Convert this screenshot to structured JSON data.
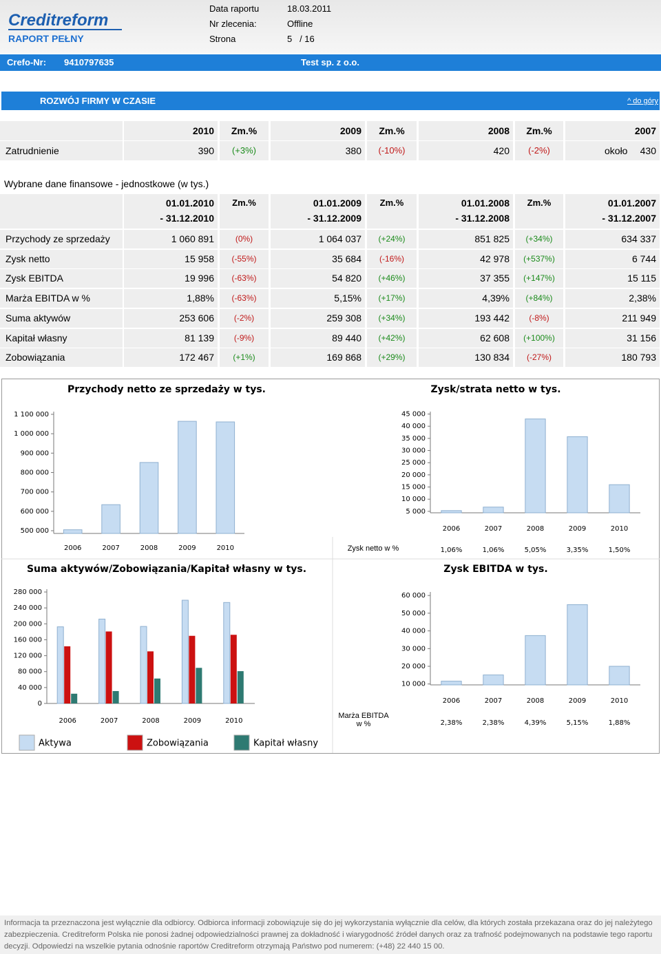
{
  "header": {
    "logo": "Creditreform",
    "report_type": "RAPORT PEŁNY",
    "fields": [
      {
        "label": "Data raportu",
        "value": "18.03.2011"
      },
      {
        "label": "Nr zlecenia:",
        "value": "Offline"
      },
      {
        "label": "Strona",
        "value": "5   / 16"
      }
    ],
    "crefo_label": "Crefo-Nr:",
    "crefo_nr": "9410797635",
    "company": "Test sp. z o.o."
  },
  "section": {
    "title": "ROZWÓJ FIRMY W CZASIE",
    "link": "^ do góry"
  },
  "employment": {
    "columns": [
      "2010",
      "Zm.%",
      "2009",
      "Zm.%",
      "2008",
      "Zm.%",
      "2007"
    ],
    "label": "Zatrudnienie",
    "cells": [
      "390",
      "(+3%)",
      "380",
      "(-10%)",
      "420",
      "(-2%)",
      "430"
    ],
    "approx": "około"
  },
  "financial": {
    "title": "Wybrane dane finansowe - jednostkowe (w tys.)",
    "columns": [
      [
        "01.01.2010",
        "- 31.12.2010"
      ],
      [
        "Zm.%"
      ],
      [
        "01.01.2009",
        "- 31.12.2009"
      ],
      [
        "Zm.%"
      ],
      [
        "01.01.2008",
        "- 31.12.2008"
      ],
      [
        "Zm.%"
      ],
      [
        "01.01.2007",
        "- 31.12.2007"
      ]
    ],
    "rows": [
      [
        "Przychody ze sprzedaży",
        "1 060 891",
        "(0%)",
        "1 064 037",
        "(+24%)",
        "851 825",
        "(+34%)",
        "634 337"
      ],
      [
        "Zysk netto",
        "15 958",
        "(-55%)",
        "35 684",
        "(-16%)",
        "42 978",
        "(+537%)",
        "6 744"
      ],
      [
        "Zysk EBITDA",
        "19 996",
        "(-63%)",
        "54 820",
        "(+46%)",
        "37 355",
        "(+147%)",
        "15 115"
      ],
      [
        "Marża EBITDA w %",
        "1,88%",
        "(-63%)",
        "5,15%",
        "(+17%)",
        "4,39%",
        "(+84%)",
        "2,38%"
      ],
      [
        "Suma aktywów",
        "253 606",
        "(-2%)",
        "259 308",
        "(+34%)",
        "193 442",
        "(-8%)",
        "211 949"
      ],
      [
        "Kapitał własny",
        "81 139",
        "(-9%)",
        "89 440",
        "(+42%)",
        "62 608",
        "(+100%)",
        "31 156"
      ],
      [
        "Zobowiązania",
        "172 467",
        "(+1%)",
        "169 868",
        "(+29%)",
        "130 834",
        "(-27%)",
        "180 793"
      ]
    ]
  },
  "charts": [
    {
      "type": "bar",
      "title": "Przychody netto ze sprzedaży w tys.",
      "categories": [
        "2006",
        "2007",
        "2008",
        "2009",
        "2010"
      ],
      "values": [
        505000,
        634337,
        851825,
        1064037,
        1060891
      ],
      "color": "#c6dcf2",
      "ylim": [
        486000,
        1114000
      ],
      "yticks": [
        {
          "value": 500000,
          "label": "500 000"
        },
        {
          "value": 600000,
          "label": "600 000"
        },
        {
          "value": 700000,
          "label": "700 000"
        },
        {
          "value": 800000,
          "label": "800 000"
        },
        {
          "value": 900000,
          "label": "900 000"
        },
        {
          "value": 1000000,
          "label": "1 000 000"
        },
        {
          "value": 1100000,
          "label": "1 100 000"
        }
      ]
    },
    {
      "type": "bar",
      "title": "Zysk/strata netto w tys.",
      "categories": [
        "2006",
        "2007",
        "2008",
        "2009",
        "2010"
      ],
      "values": [
        5300,
        6744,
        42978,
        35684,
        15958
      ],
      "color": "#c6dcf2",
      "ylim": [
        4400,
        46000
      ],
      "yticks": [
        {
          "value": 5000,
          "label": "5 000"
        },
        {
          "value": 10000,
          "label": "10 000"
        },
        {
          "value": 15000,
          "label": "15 000"
        },
        {
          "value": 20000,
          "label": "20 000"
        },
        {
          "value": 25000,
          "label": "25 000"
        },
        {
          "value": 30000,
          "label": "30 000"
        },
        {
          "value": 35000,
          "label": "35 000"
        },
        {
          "value": 40000,
          "label": "40 000"
        },
        {
          "value": 45000,
          "label": "45 000"
        }
      ],
      "row_label": "Zysk netto w %",
      "row_values": [
        "1,06%",
        "1,06%",
        "5,05%",
        "3,35%",
        "1,50%"
      ]
    },
    {
      "type": "grouped_bar",
      "title": "Suma aktywów/Zobowiązania/Kapitał własny w tys.",
      "categories": [
        "2006",
        "2007",
        "2008",
        "2009",
        "2010"
      ],
      "series": [
        {
          "name": "Aktywa",
          "color": "#c6dcf2",
          "values": [
            192500,
            211949,
            193442,
            259308,
            253606
          ]
        },
        {
          "name": "Zobowiązania",
          "color": "#cc1111",
          "values": [
            143500,
            180793,
            130834,
            169868,
            172467
          ]
        },
        {
          "name": "Kapitał własny",
          "color": "#2e7a72",
          "values": [
            24500,
            31156,
            62608,
            89440,
            81139
          ]
        }
      ],
      "ylim": [
        0,
        287000
      ],
      "yticks": [
        0,
        {
          "value": 40000,
          "label": "40 000"
        },
        {
          "value": 80000,
          "label": "80 000"
        },
        {
          "value": 120000,
          "label": "120 000"
        },
        {
          "value": 160000,
          "label": "160 000"
        },
        {
          "value": 200000,
          "label": "200 000"
        },
        {
          "value": 240000,
          "label": "240 000"
        },
        {
          "value": 280000,
          "label": "280 000"
        }
      ]
    },
    {
      "type": "bar",
      "title": "Zysk EBITDA w tys.",
      "categories": [
        "2006",
        "2007",
        "2008",
        "2009",
        "2010"
      ],
      "values": [
        11600,
        15115,
        37355,
        54820,
        19996
      ],
      "color": "#c6dcf2",
      "ylim": [
        9500,
        62000
      ],
      "yticks": [
        {
          "value": 10000,
          "label": "10 000"
        },
        {
          "value": 20000,
          "label": "20 000"
        },
        {
          "value": 30000,
          "label": "30 000"
        },
        {
          "value": 40000,
          "label": "40 000"
        },
        {
          "value": 50000,
          "label": "50 000"
        },
        {
          "value": 60000,
          "label": "60 000"
        }
      ],
      "row_label": "Marża EBITDA w %",
      "row_values": [
        "2,38%",
        "2,38%",
        "4,39%",
        "5,15%",
        "1,88%"
      ]
    }
  ],
  "footer": "Informacja ta przeznaczona jest wyłącznie dla odbiorcy. Odbiorca informacji zobowiązuje się do jej wykorzystania wyłącznie dla celów, dla których została przekazana oraz do jej należytego zabezpieczenia. Creditreform Polska nie ponosi żadnej odpowiedzialności prawnej za dokładność i wiarygodność źródeł danych oraz za trafność podejmowanych na podstawie tego raportu decyzji. Odpowiedzi na wszelkie pytania odnośnie raportów Creditreform otrzymają Państwo pod numerem: (+48) 22 440 15 00."
}
